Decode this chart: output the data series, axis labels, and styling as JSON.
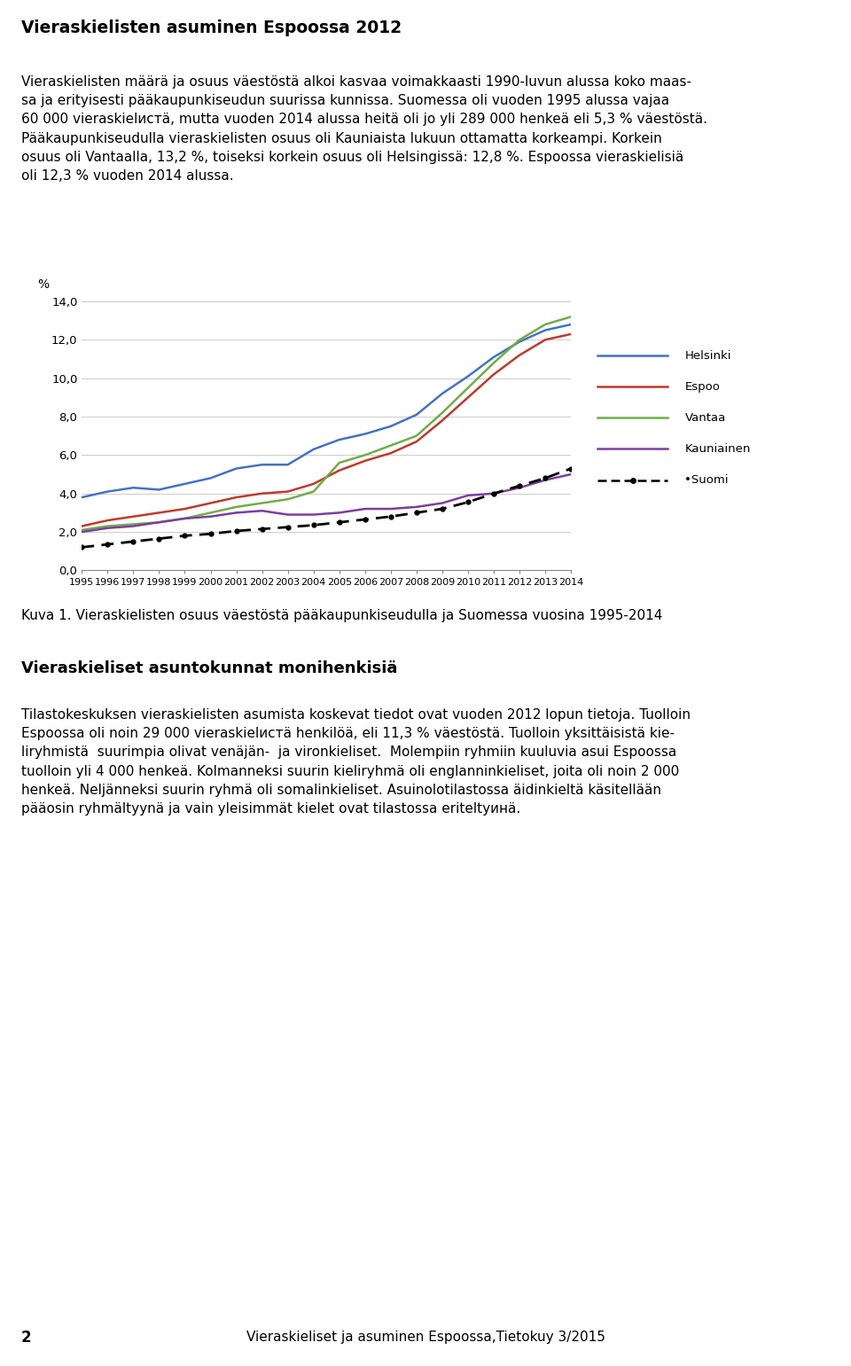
{
  "title": "Vieraskielisten asuminen Espoossa 2012",
  "header_bg": "#dde87a",
  "page_bg": "#ffffff",
  "caption": "Kuva 1. Vieraskielisten osuus väestöstä pääkaupunkiseudulla ja Suomessa vuosina 1995-2014",
  "section_title": "Vieraskieliset asuntokunnat monihenkisiä",
  "footer_bg": "#c8a0c8",
  "footer_text": "Vieraskieliset ja asuminen Espoossa,Tietokuу 3/2015",
  "footer_page": "2",
  "years": [
    1995,
    1996,
    1997,
    1998,
    1999,
    2000,
    2001,
    2002,
    2003,
    2004,
    2005,
    2006,
    2007,
    2008,
    2009,
    2010,
    2011,
    2012,
    2013,
    2014
  ],
  "Helsinki": [
    3.8,
    4.1,
    4.3,
    4.2,
    4.5,
    4.8,
    5.3,
    5.5,
    5.5,
    6.3,
    6.8,
    7.1,
    7.5,
    8.1,
    9.2,
    10.1,
    11.1,
    11.9,
    12.5,
    12.8
  ],
  "Espoo": [
    2.3,
    2.6,
    2.8,
    3.0,
    3.2,
    3.5,
    3.8,
    4.0,
    4.1,
    4.5,
    5.2,
    5.7,
    6.1,
    6.7,
    7.8,
    9.0,
    10.2,
    11.2,
    12.0,
    12.3
  ],
  "Vantaa": [
    2.1,
    2.3,
    2.4,
    2.5,
    2.7,
    3.0,
    3.3,
    3.5,
    3.7,
    4.1,
    5.6,
    6.0,
    6.5,
    7.0,
    8.2,
    9.5,
    10.8,
    12.0,
    12.8,
    13.2
  ],
  "Kauniainen": [
    2.0,
    2.2,
    2.3,
    2.5,
    2.7,
    2.8,
    3.0,
    3.1,
    2.9,
    2.9,
    3.0,
    3.2,
    3.2,
    3.3,
    3.5,
    3.9,
    4.0,
    4.3,
    4.7,
    5.0
  ],
  "Suomi": [
    1.2,
    1.35,
    1.5,
    1.65,
    1.8,
    1.9,
    2.05,
    2.15,
    2.25,
    2.35,
    2.5,
    2.65,
    2.8,
    3.0,
    3.2,
    3.55,
    4.0,
    4.4,
    4.8,
    5.3
  ],
  "Helsinki_color": "#4472c4",
  "Espoo_color": "#c0392b",
  "Vantaa_color": "#70ad47",
  "Kauniainen_color": "#7b3f9e",
  "Suomi_color": "#000000",
  "ylim": [
    0,
    14
  ],
  "yticks": [
    0.0,
    2.0,
    4.0,
    6.0,
    8.0,
    10.0,
    12.0,
    14.0
  ],
  "ylabel": "%",
  "para1_lines": [
    "Vieraskielisten määrä ja osuus väestöstä alkoi kasvaa voimakkaasti 1990-luvun alussa koko maas-",
    "sa ja erityisesti pääkaupunkiseudun suurissa kunnissa. Suomessa oli vuoden 1995 alussa vajaa",
    "60 000 vieraskielистä, mutta vuoden 2014 alussa heitä oli jo yli 289 000 henkeä eli 5,3 % väestöstä.",
    "Pääkaupunkiseudulla vieraskielisten osuus oli Kauniaista lukuun ottamatta korkeampi. Korkein",
    "osuus oli Vantaalla, 13,2 %, toiseksi korkein osuus oli Helsingissä: 12,8 %. Espoossa vieraskielisiä",
    "oli 12,3 % vuoden 2014 alussa."
  ],
  "para2_lines": [
    "Tilastokeskuksen vieraskielisten asumista koskevat tiedot ovat vuoden 2012 lopun tietoja. Tuolloin",
    "Espoossa oli noin 29 000 vieraskielистä henkilöä, eli 11,3 % väestöstä. Tuolloin yksittäisistä kie-",
    "liryhmistä  suurimpia olivat venäjän-  ja vironkieliset.  Molempiin ryhmiin kuuluvia asui Espoossa",
    "tuolloin yli 4 000 henkeä. Kolmanneksi suurin kieliryhmä oli englanninkieliset, joita oli noin 2 000",
    "henkeä. Neljänneksi suurin ryhmä oli somalinkieliset. Asuinolotilastossa äidinkieltä käsitellään",
    "pääosin ryhmältyynä ja vain yleisimmät kielet ovat tilastossa eriteltyинä."
  ]
}
